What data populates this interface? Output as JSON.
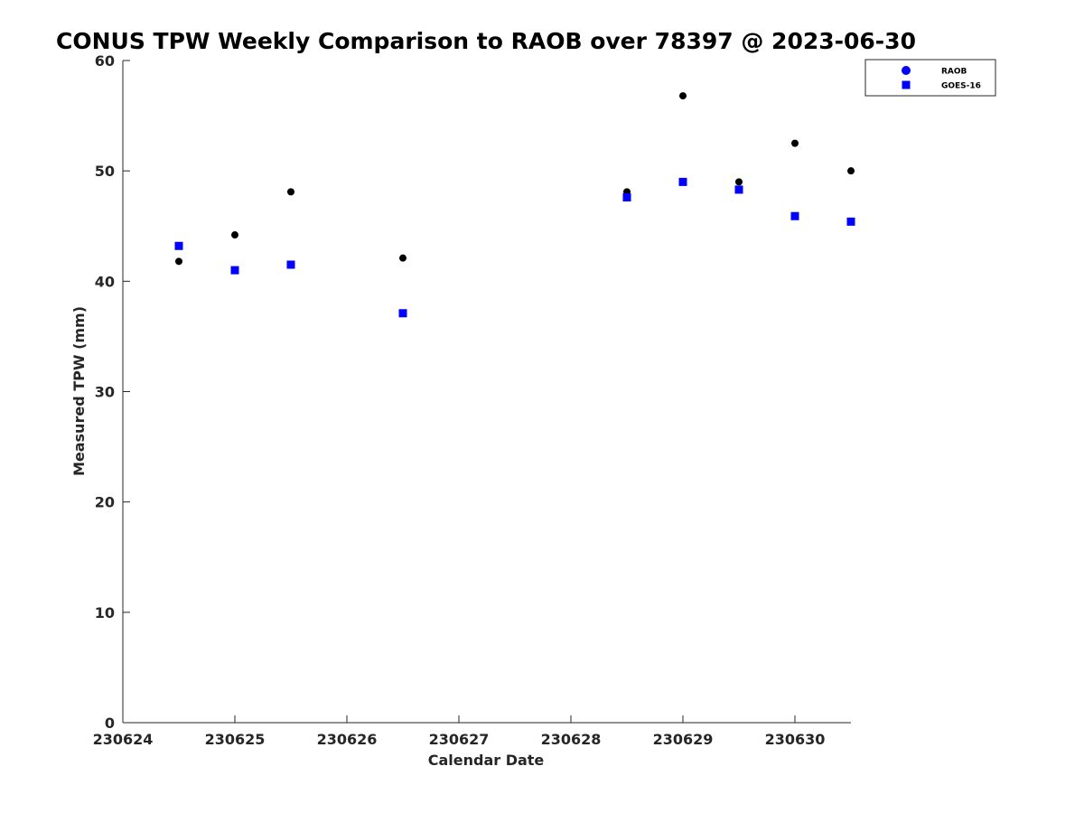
{
  "chart_data": {
    "type": "scatter",
    "title": "CONUS TPW Weekly Comparison to RAOB over 78397 @ 2023-06-30",
    "xlabel": "Calendar Date",
    "ylabel": "Measured TPW (mm)",
    "xlim": [
      230624,
      230630.5
    ],
    "ylim": [
      0,
      60
    ],
    "xticks": [
      230624,
      230625,
      230626,
      230627,
      230628,
      230629,
      230630
    ],
    "yticks": [
      0,
      10,
      20,
      30,
      40,
      50,
      60
    ],
    "grid": false,
    "legend_position": "top-right",
    "series": [
      {
        "name": "RAOB",
        "marker": "circle",
        "color": "#000000",
        "legend_color": "#0000ff",
        "points": [
          [
            230624.5,
            41.8
          ],
          [
            230625.0,
            44.2
          ],
          [
            230625.5,
            48.1
          ],
          [
            230626.5,
            42.1
          ],
          [
            230628.5,
            48.1
          ],
          [
            230629.0,
            56.8
          ],
          [
            230629.5,
            49.0
          ],
          [
            230630.0,
            52.5
          ],
          [
            230630.5,
            50.0
          ]
        ]
      },
      {
        "name": "GOES-16",
        "marker": "square",
        "color": "#0000ff",
        "legend_color": "#0000ff",
        "points": [
          [
            230624.5,
            43.2
          ],
          [
            230625.0,
            41.0
          ],
          [
            230625.5,
            41.5
          ],
          [
            230626.5,
            37.1
          ],
          [
            230628.5,
            47.6
          ],
          [
            230629.0,
            49.0
          ],
          [
            230629.5,
            48.3
          ],
          [
            230630.0,
            45.9
          ],
          [
            230630.5,
            45.4
          ]
        ]
      }
    ]
  }
}
